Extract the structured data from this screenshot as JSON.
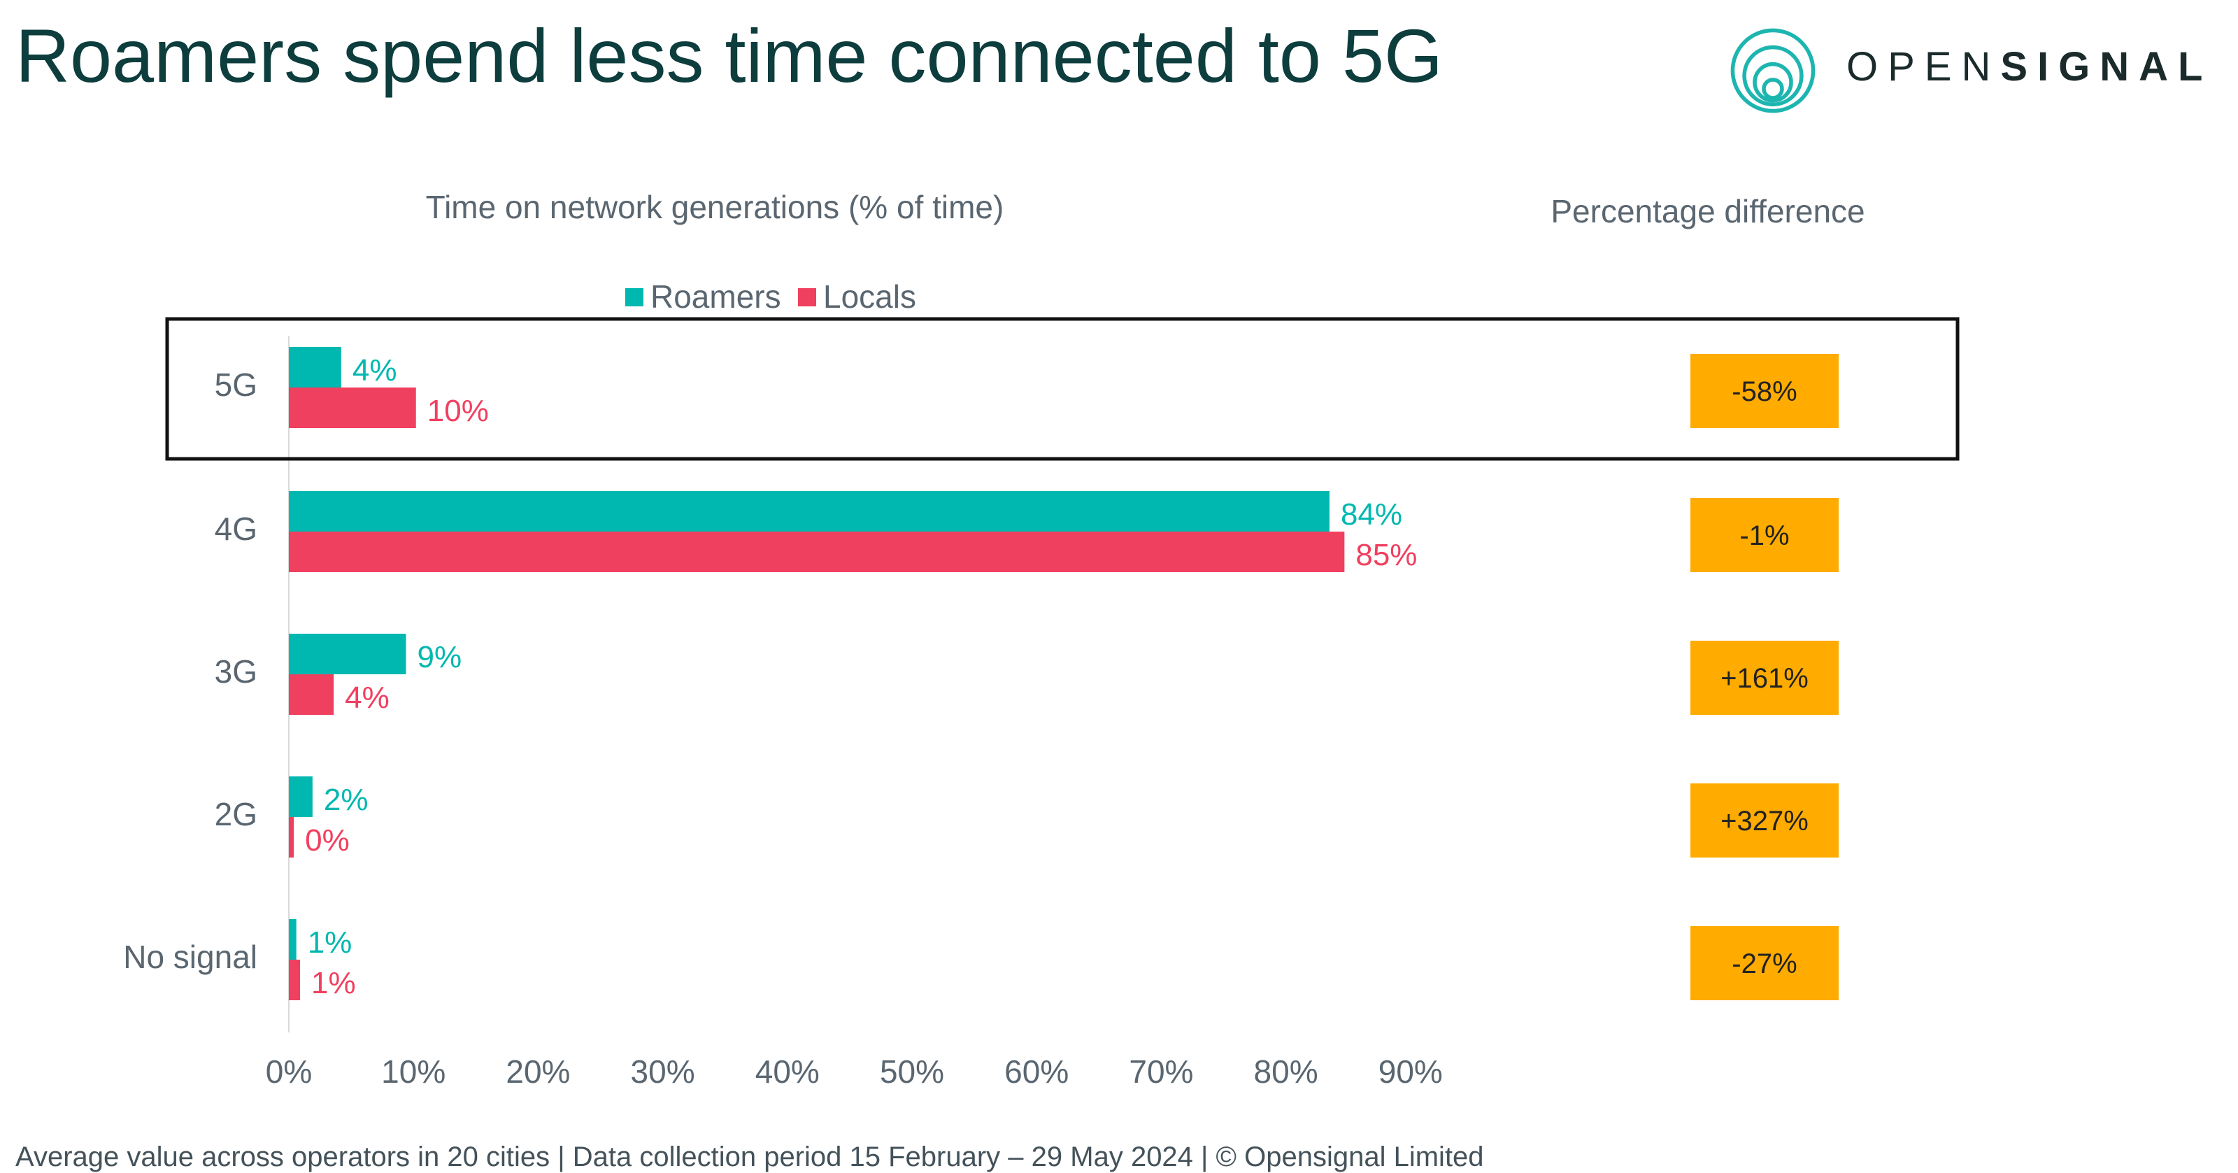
{
  "title": "Roamers spend less time connected to 5G",
  "logo": {
    "name": "opensignal-logo",
    "text_light": "OPEN",
    "text_bold": "SIGNAL",
    "color": "#1db5b0"
  },
  "footer": "Average value across operators in 20 cities  |  Data collection period 15 February – 29 May 2024   |  © Opensignal Limited",
  "colors": {
    "roamers": "#00b8b0",
    "locals": "#f0405f",
    "badge": "#ffab00",
    "text": "#5a6670",
    "highlight_border": "#111111"
  },
  "chart_data": {
    "type": "bar",
    "orientation": "horizontal",
    "title": "Time on network generations (% of time)",
    "right_column_title": "Percentage difference",
    "categories": [
      "5G",
      "4G",
      "3G",
      "2G",
      "No signal"
    ],
    "series": [
      {
        "name": "Roamers",
        "color": "#00b8b0",
        "values": [
          4.2,
          83.5,
          9.4,
          1.9,
          0.6
        ],
        "labels": [
          "4%",
          "84%",
          "9%",
          "2%",
          "1%"
        ]
      },
      {
        "name": "Locals",
        "color": "#f0405f",
        "values": [
          10.2,
          84.7,
          3.6,
          0.4,
          0.9
        ],
        "labels": [
          "10%",
          "85%",
          "4%",
          "0%",
          "1%"
        ]
      }
    ],
    "percentage_difference": [
      "-58%",
      "-1%",
      "+161%",
      "+327%",
      "-27%"
    ],
    "xlim": [
      0,
      90
    ],
    "xticks": [
      0,
      10,
      20,
      30,
      40,
      50,
      60,
      70,
      80,
      90
    ],
    "xtick_labels": [
      "0%",
      "10%",
      "20%",
      "30%",
      "40%",
      "50%",
      "60%",
      "70%",
      "80%",
      "90%"
    ],
    "highlighted_category": "5G",
    "legend_position": "top",
    "grid": false
  }
}
